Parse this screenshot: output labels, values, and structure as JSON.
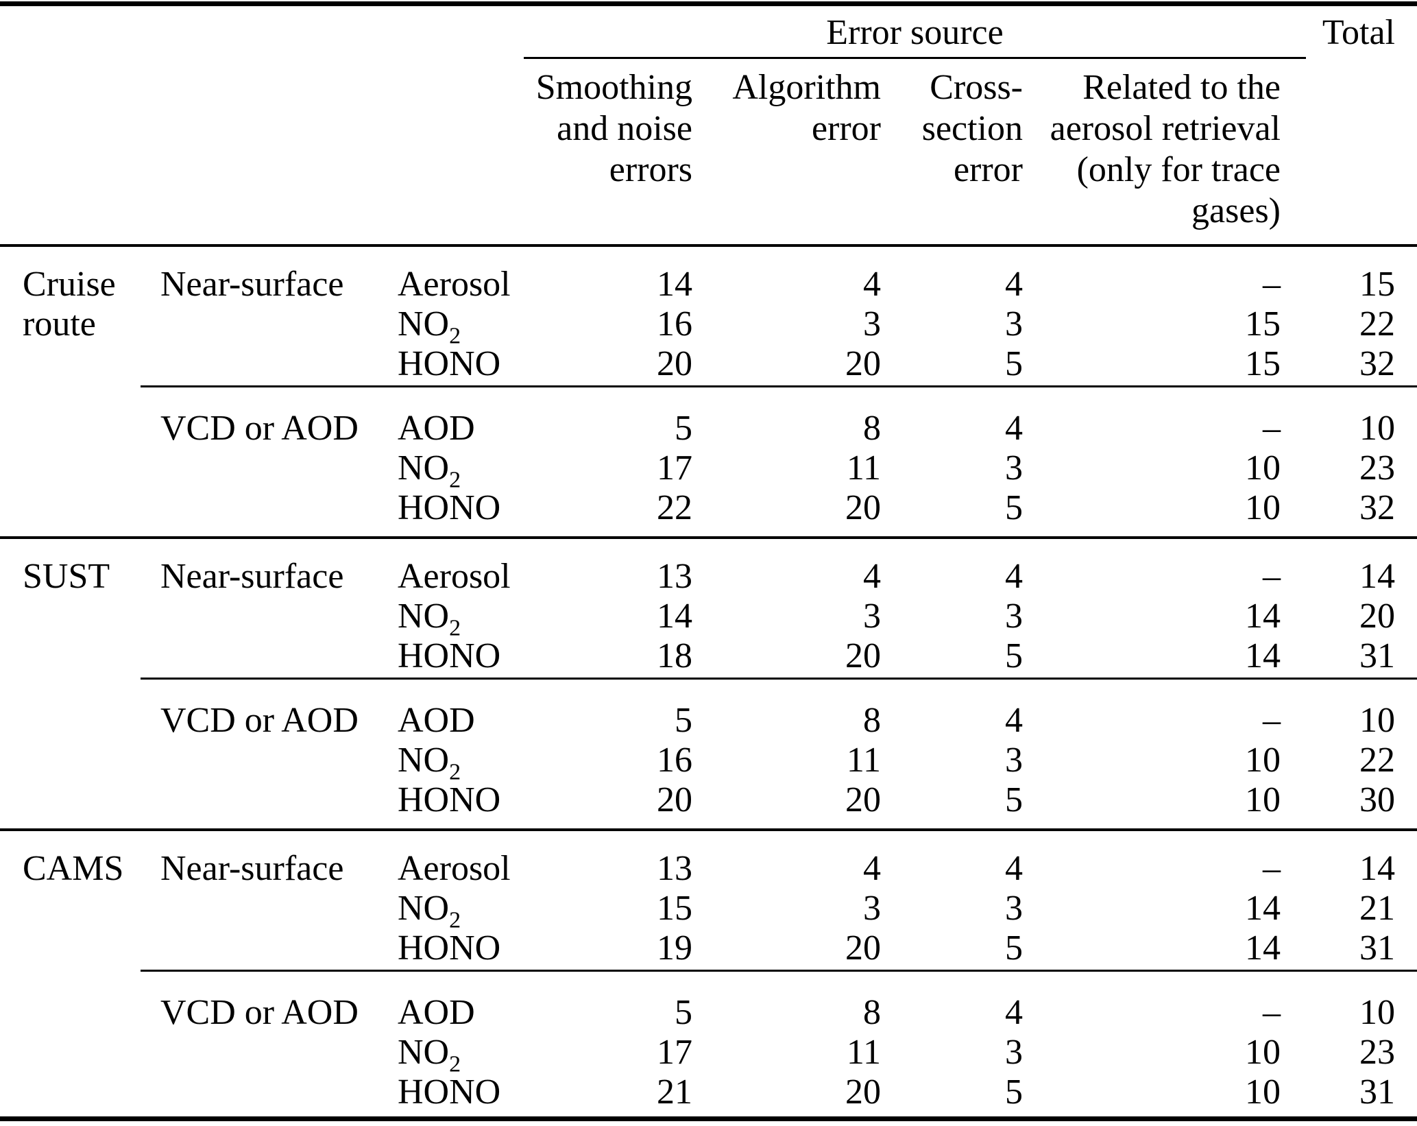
{
  "page": {
    "background": "#ffffff",
    "text_color": "#000000"
  },
  "table": {
    "header": {
      "error_source_label": "Error source",
      "total_label": "Total",
      "columns": [
        {
          "lines": [
            "Smoothing",
            "and noise",
            "errors"
          ]
        },
        {
          "lines": [
            "Algorithm",
            "error",
            ""
          ]
        },
        {
          "lines": [
            "Cross-",
            "section",
            "error"
          ]
        },
        {
          "lines": [
            "Related to the",
            "aerosol retrieval",
            "(only for trace",
            "gases)"
          ]
        }
      ]
    },
    "groups": [
      {
        "label_lines": [
          "Cruise",
          "route"
        ],
        "sections": [
          {
            "label": "Near-surface",
            "rows": [
              {
                "species": {
                  "name": "Aerosol",
                  "sub": ""
                },
                "values": [
                  "14",
                  "4",
                  "4",
                  "–",
                  "15"
                ]
              },
              {
                "species": {
                  "name": "NO",
                  "sub": "2"
                },
                "values": [
                  "16",
                  "3",
                  "3",
                  "15",
                  "22"
                ]
              },
              {
                "species": {
                  "name": "HONO",
                  "sub": ""
                },
                "values": [
                  "20",
                  "20",
                  "5",
                  "15",
                  "32"
                ]
              }
            ]
          },
          {
            "label": "VCD or AOD",
            "rows": [
              {
                "species": {
                  "name": "AOD",
                  "sub": ""
                },
                "values": [
                  "5",
                  "8",
                  "4",
                  "–",
                  "10"
                ]
              },
              {
                "species": {
                  "name": "NO",
                  "sub": "2"
                },
                "values": [
                  "17",
                  "11",
                  "3",
                  "10",
                  "23"
                ]
              },
              {
                "species": {
                  "name": "HONO",
                  "sub": ""
                },
                "values": [
                  "22",
                  "20",
                  "5",
                  "10",
                  "32"
                ]
              }
            ]
          }
        ]
      },
      {
        "label_lines": [
          "SUST",
          ""
        ],
        "sections": [
          {
            "label": "Near-surface",
            "rows": [
              {
                "species": {
                  "name": "Aerosol",
                  "sub": ""
                },
                "values": [
                  "13",
                  "4",
                  "4",
                  "–",
                  "14"
                ]
              },
              {
                "species": {
                  "name": "NO",
                  "sub": "2"
                },
                "values": [
                  "14",
                  "3",
                  "3",
                  "14",
                  "20"
                ]
              },
              {
                "species": {
                  "name": "HONO",
                  "sub": ""
                },
                "values": [
                  "18",
                  "20",
                  "5",
                  "14",
                  "31"
                ]
              }
            ]
          },
          {
            "label": "VCD or AOD",
            "rows": [
              {
                "species": {
                  "name": "AOD",
                  "sub": ""
                },
                "values": [
                  "5",
                  "8",
                  "4",
                  "–",
                  "10"
                ]
              },
              {
                "species": {
                  "name": "NO",
                  "sub": "2"
                },
                "values": [
                  "16",
                  "11",
                  "3",
                  "10",
                  "22"
                ]
              },
              {
                "species": {
                  "name": "HONO",
                  "sub": ""
                },
                "values": [
                  "20",
                  "20",
                  "5",
                  "10",
                  "30"
                ]
              }
            ]
          }
        ]
      },
      {
        "label_lines": [
          "CAMS",
          ""
        ],
        "sections": [
          {
            "label": "Near-surface",
            "rows": [
              {
                "species": {
                  "name": "Aerosol",
                  "sub": ""
                },
                "values": [
                  "13",
                  "4",
                  "4",
                  "–",
                  "14"
                ]
              },
              {
                "species": {
                  "name": "NO",
                  "sub": "2"
                },
                "values": [
                  "15",
                  "3",
                  "3",
                  "14",
                  "21"
                ]
              },
              {
                "species": {
                  "name": "HONO",
                  "sub": ""
                },
                "values": [
                  "19",
                  "20",
                  "5",
                  "14",
                  "31"
                ]
              }
            ]
          },
          {
            "label": "VCD or AOD",
            "rows": [
              {
                "species": {
                  "name": "AOD",
                  "sub": ""
                },
                "values": [
                  "5",
                  "8",
                  "4",
                  "–",
                  "10"
                ]
              },
              {
                "species": {
                  "name": "NO",
                  "sub": "2"
                },
                "values": [
                  "17",
                  "11",
                  "3",
                  "10",
                  "23"
                ]
              },
              {
                "species": {
                  "name": "HONO",
                  "sub": ""
                },
                "values": [
                  "21",
                  "20",
                  "5",
                  "10",
                  "31"
                ]
              }
            ]
          }
        ]
      }
    ]
  }
}
